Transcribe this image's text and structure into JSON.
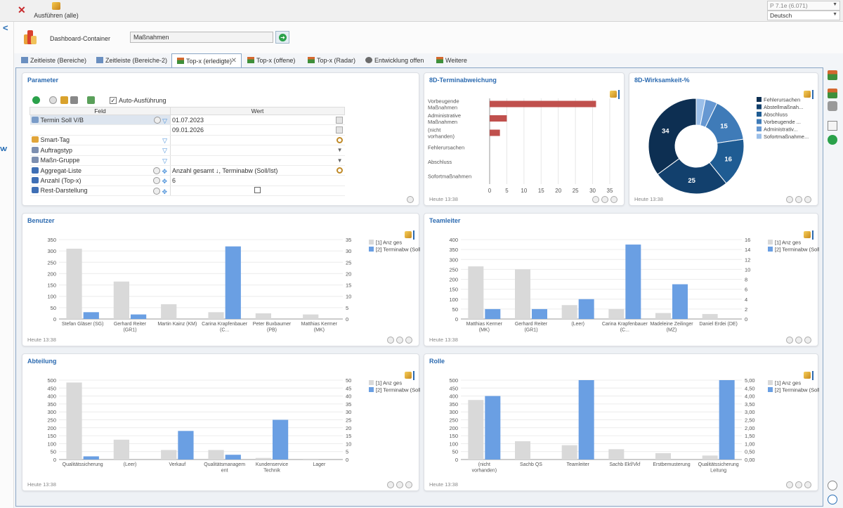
{
  "toolbar": {
    "close_icon": "close-x-icon",
    "run_label": "Ausführen (alle)",
    "version": "P 7.1e (6.071)",
    "language": "Deutsch"
  },
  "dashboard": {
    "label": "Dashboard-Container",
    "value": "Maßnahmen"
  },
  "tabs": [
    {
      "label": "Zeitleiste (Bereiche)"
    },
    {
      "label": "Zeitleiste (Bereiche-2)"
    },
    {
      "label": "Top-x (erledigte)",
      "active": true
    },
    {
      "label": "Top-x (offene)"
    },
    {
      "label": "Top-x (Radar)"
    },
    {
      "label": "Entwicklung offen"
    },
    {
      "label": "Weitere"
    }
  ],
  "parameter": {
    "title": "Parameter",
    "auto_label": "Auto-Ausführung",
    "col_field": "Feld",
    "col_value": "Wert",
    "rows": [
      {
        "field": "Termin Soll V/B",
        "value": "01.07.2023"
      },
      {
        "field": "",
        "value": "09.01.2026"
      },
      {
        "field": "Smart-Tag",
        "value": ""
      },
      {
        "field": "Auftragstyp",
        "value": ""
      },
      {
        "field": "Maßn-Gruppe",
        "value": ""
      },
      {
        "field": "Aggregat-Liste",
        "value": "Anzahl gesamt ↓, Terminabw (Soll/Ist)"
      },
      {
        "field": "Anzahl (Top-x)",
        "value": "6"
      },
      {
        "field": "Rest-Darstellung",
        "value": ""
      }
    ]
  },
  "footer_text": "Heute 13:38",
  "colors": {
    "accent": "#2b6ab0",
    "bar_red": "#c0504d",
    "bar_gray": "#d9d9d9",
    "bar_blue": "#6a9fe3"
  },
  "charts": {
    "termin": {
      "title": "8D-Terminabweichung"
    },
    "wirk": {
      "title": "8D-Wirksamkeit-%"
    },
    "benutzer": {
      "title": "Benutzer"
    },
    "teamleiter": {
      "title": "Teamleiter"
    },
    "abteilung": {
      "title": "Abteilung"
    },
    "rolle": {
      "title": "Rolle"
    }
  },
  "chart_data": [
    {
      "id": "termin",
      "type": "bar",
      "orientation": "horizontal",
      "title": "8D-Terminabweichung",
      "categories": [
        "Vorbeugende Maßnahmen",
        "Administrative Maßnahmen",
        "(nicht vorhanden)",
        "Fehlerursachen",
        "Abschluss",
        "Sofortmaßnahmen"
      ],
      "values": [
        31,
        5,
        3,
        0,
        0,
        0
      ],
      "xlim": [
        0,
        35
      ],
      "xticks": [
        "0",
        "5",
        "10",
        "15",
        "20",
        "25",
        "30",
        "35"
      ],
      "color": "#c0504d"
    },
    {
      "id": "wirk",
      "type": "pie",
      "donut": true,
      "title": "8D-Wirksamkeit-%",
      "slices": [
        {
          "label": "Fehlerursachen",
          "value": 34,
          "color": "#0d2f52",
          "shown": "34"
        },
        {
          "label": "Abstellmaßnah...",
          "value": 25,
          "color": "#12406d",
          "shown": "25"
        },
        {
          "label": "Abschluss",
          "value": 16,
          "color": "#1f5c93",
          "shown": "16"
        },
        {
          "label": "Vorbeugende ...",
          "value": 15,
          "color": "#3f7bb8",
          "shown": "15"
        },
        {
          "label": "Administrativ...",
          "value": 4,
          "color": "#6698d2",
          "shown": ""
        },
        {
          "label": "Sofortmaßnahme...",
          "value": 3,
          "color": "#9bbfe9",
          "shown": ""
        }
      ]
    },
    {
      "id": "benutzer",
      "type": "bar",
      "title": "Benutzer",
      "categories": [
        "Stefan Gläser (SG)",
        "Gerhard Reiter (GR1)",
        "Martin Kainz (KM)",
        "Carina Krapfenbauer (C...",
        "Peter Buxbaumer (PB)",
        "Matthias Kermer (MK)"
      ],
      "series": [
        {
          "name": "[1] Anz ges",
          "values": [
            310,
            165,
            65,
            30,
            25,
            20
          ]
        },
        {
          "name": "[2] Terminabw (Soll/Ist)",
          "values": [
            3,
            2,
            0,
            32,
            0,
            0
          ]
        }
      ],
      "ylim_left": [
        0,
        350
      ],
      "ylim_right": [
        0,
        35
      ],
      "yticks_left": [
        "0",
        "50",
        "100",
        "150",
        "200",
        "250",
        "300",
        "350"
      ],
      "yticks_right": [
        "0",
        "5",
        "10",
        "15",
        "20",
        "25",
        "30",
        "35"
      ]
    },
    {
      "id": "teamleiter",
      "type": "bar",
      "title": "Teamleiter",
      "categories": [
        "Matthias Kermer (MK)",
        "Gerhard Reiter (GR1)",
        "(Leer)",
        "Carina Krapfenbauer (C...",
        "Madeleine Zeilinger (MZ)",
        "Daniel Erdei (DE)"
      ],
      "series": [
        {
          "name": "[1] Anz ges",
          "values": [
            265,
            250,
            70,
            50,
            30,
            25
          ]
        },
        {
          "name": "[2] Terminabw (Soll/Ist)",
          "values": [
            2,
            2,
            4,
            15,
            7,
            0
          ]
        }
      ],
      "ylim_left": [
        0,
        400
      ],
      "ylim_right": [
        0,
        16
      ],
      "yticks_left": [
        "0",
        "50",
        "100",
        "150",
        "200",
        "250",
        "300",
        "350",
        "400"
      ],
      "yticks_right": [
        "0",
        "2",
        "4",
        "6",
        "8",
        "10",
        "12",
        "14",
        "16"
      ]
    },
    {
      "id": "abteilung",
      "type": "bar",
      "title": "Abteilung",
      "categories": [
        "Qualitätssicherung",
        "(Leer)",
        "Verkauf",
        "Qualitätsmanagement",
        "Kundenservice Technik",
        "Lager"
      ],
      "series": [
        {
          "name": "[1] Anz ges",
          "values": [
            485,
            125,
            60,
            60,
            10,
            5
          ]
        },
        {
          "name": "[2] Terminabw (Soll/Ist)",
          "values": [
            2,
            0,
            18,
            3,
            25,
            0
          ]
        }
      ],
      "ylim_left": [
        0,
        500
      ],
      "ylim_right": [
        0,
        50
      ],
      "yticks_left": [
        "0",
        "50",
        "100",
        "150",
        "200",
        "250",
        "300",
        "350",
        "400",
        "450",
        "500"
      ],
      "yticks_right": [
        "0",
        "5",
        "10",
        "15",
        "20",
        "25",
        "30",
        "35",
        "40",
        "45",
        "50"
      ]
    },
    {
      "id": "rolle",
      "type": "bar",
      "title": "Rolle",
      "categories": [
        "(nicht vorhanden)",
        "Sachb QS",
        "Teamleiter",
        "Sachb Ekf/Vkf",
        "Erstbemusterung",
        "Qualitätssicherung Leitung"
      ],
      "series": [
        {
          "name": "[1] Anz ges",
          "values": [
            375,
            115,
            90,
            65,
            40,
            25
          ]
        },
        {
          "name": "[2] Terminabw (Soll/Ist)",
          "values": [
            4.0,
            0,
            5.0,
            0,
            0,
            5.0
          ]
        }
      ],
      "ylim_left": [
        0,
        500
      ],
      "ylim_right": [
        0,
        5
      ],
      "yticks_left": [
        "0",
        "50",
        "100",
        "150",
        "200",
        "250",
        "300",
        "350",
        "400",
        "450",
        "500"
      ],
      "yticks_right": [
        "0,00",
        "0,50",
        "1,00",
        "1,50",
        "2,00",
        "2,50",
        "3,00",
        "3,50",
        "4,00",
        "4,50",
        "5,00"
      ]
    }
  ]
}
